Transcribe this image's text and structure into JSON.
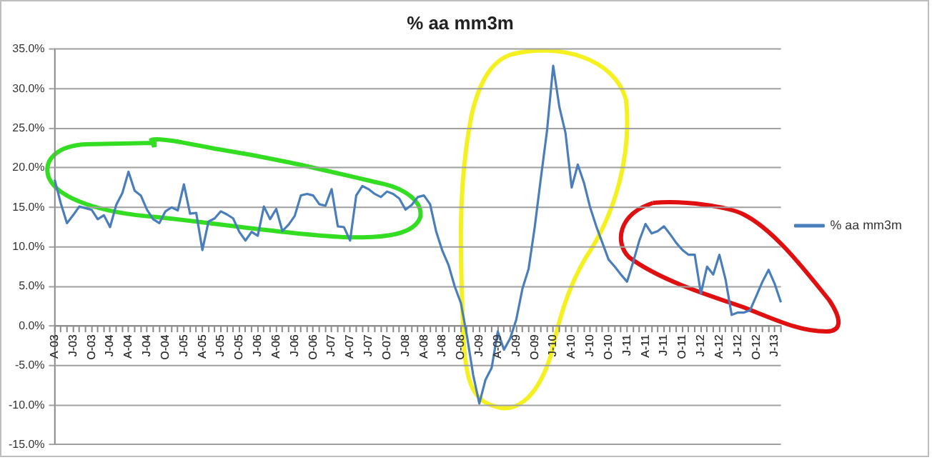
{
  "chart_data": {
    "type": "line",
    "title": "% aa mm3m",
    "categories": [
      "A-03",
      null,
      null,
      "J-03",
      null,
      null,
      "O-03",
      null,
      null,
      "J-04",
      null,
      null,
      "A-04",
      null,
      null,
      "J-04",
      null,
      null,
      "O-04",
      null,
      null,
      "J-05",
      null,
      null,
      "A-05",
      null,
      null,
      "J-05",
      null,
      null,
      "O-05",
      null,
      null,
      "J-06",
      null,
      null,
      "A-06",
      null,
      null,
      "J-06",
      null,
      null,
      "O-06",
      null,
      null,
      "J-07",
      null,
      null,
      "A-07",
      null,
      null,
      "J-07",
      null,
      null,
      "O-07",
      null,
      null,
      "J-08",
      null,
      null,
      "A-08",
      null,
      null,
      "J-08",
      null,
      null,
      "O-08",
      null,
      null,
      "J-09",
      null,
      null,
      "A-09",
      null,
      null,
      "J-09",
      null,
      null,
      "O-09",
      null,
      null,
      "J-10",
      null,
      null,
      "A-10",
      null,
      null,
      "J-10",
      null,
      null,
      "O-10",
      null,
      null,
      "J-11",
      null,
      null,
      "A-11",
      null,
      null,
      "J-11",
      null,
      null,
      "O-11",
      null,
      null,
      "J-12",
      null,
      null,
      "A-12",
      null,
      null,
      "J-12",
      null,
      null,
      "O-12",
      null,
      null,
      "J-13",
      null
    ],
    "series": [
      {
        "name": "% aa mm3m",
        "color": "#4a7ebb",
        "values": [
          18.5,
          15.5,
          13.0,
          14.0,
          15.1,
          14.9,
          14.7,
          13.5,
          14.0,
          12.5,
          15.3,
          16.8,
          19.5,
          17.1,
          16.5,
          14.7,
          13.5,
          13.0,
          14.5,
          15.0,
          14.6,
          17.9,
          14.2,
          14.3,
          9.6,
          13.2,
          13.6,
          14.5,
          14.1,
          13.6,
          11.9,
          10.8,
          11.9,
          11.4,
          15.1,
          13.5,
          14.8,
          12.0,
          12.8,
          13.9,
          16.5,
          16.7,
          16.5,
          15.4,
          15.2,
          17.3,
          12.6,
          12.5,
          10.8,
          16.5,
          17.7,
          17.3,
          16.7,
          16.3,
          17.0,
          16.7,
          16.1,
          14.7,
          15.3,
          16.3,
          16.5,
          15.4,
          11.9,
          9.5,
          7.7,
          5.0,
          2.9,
          -1.3,
          -6.2,
          -9.8,
          -6.8,
          -5.3,
          -0.7,
          -3.0,
          -1.6,
          0.8,
          4.7,
          7.2,
          12.5,
          18.7,
          24.7,
          32.9,
          27.7,
          24.4,
          17.5,
          20.4,
          18.1,
          15.0,
          12.6,
          10.5,
          8.4,
          7.5,
          6.5,
          5.6,
          8.1,
          10.8,
          12.9,
          11.7,
          12.0,
          12.6,
          11.6,
          10.5,
          9.6,
          9.0,
          9.0,
          4.1,
          7.5,
          6.5,
          9.0,
          5.9,
          1.4,
          1.7,
          1.7,
          2.0,
          3.8,
          5.6,
          7.1,
          5.3,
          3.0
        ]
      }
    ],
    "ylim": [
      -15,
      35
    ],
    "yticks": [
      {
        "value": -15,
        "label": "-15.0%"
      },
      {
        "value": -10,
        "label": "-10.0%"
      },
      {
        "value": -5,
        "label": "-5.0%"
      },
      {
        "value": 0,
        "label": "0.0%"
      },
      {
        "value": 5,
        "label": "5.0%"
      },
      {
        "value": 10,
        "label": "10.0%"
      },
      {
        "value": 15,
        "label": "15.0%"
      },
      {
        "value": 20,
        "label": "20.0%"
      },
      {
        "value": 25,
        "label": "25.0%"
      },
      {
        "value": 30,
        "label": "30.0%"
      },
      {
        "value": 35,
        "label": "35.0%"
      }
    ],
    "grid": "y",
    "legend": "right",
    "marker": "none",
    "line_style": "solid"
  }
}
